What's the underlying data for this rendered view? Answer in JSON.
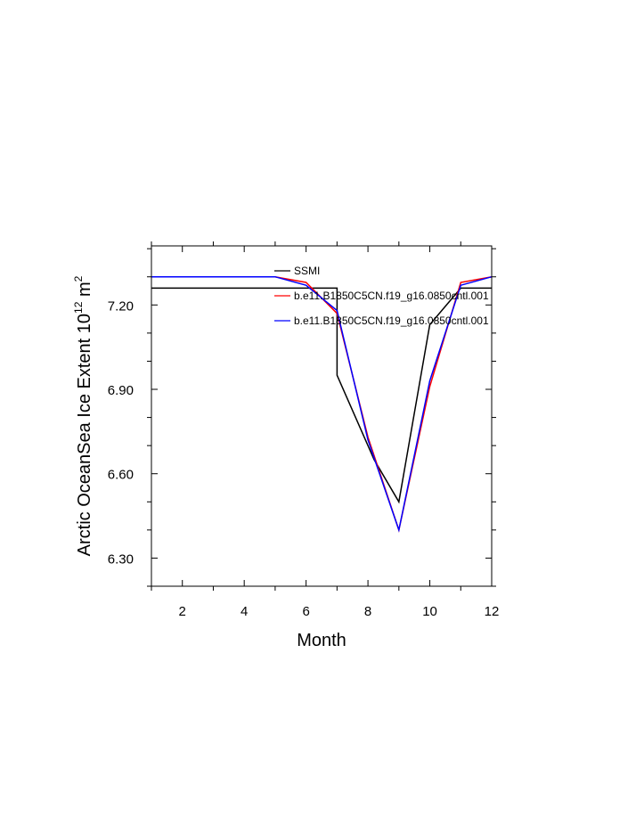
{
  "chart_data": {
    "type": "line",
    "xlabel": "Month",
    "ylabel_main": "Arctic OceanSea Ice Extent 10",
    "ylabel_exp": "12",
    "ylabel_unit": "m",
    "ylabel_unit_exp": "2",
    "xlim": [
      1,
      12
    ],
    "ylim": [
      6.2,
      7.41
    ],
    "x_ticks": [
      2,
      4,
      6,
      8,
      10,
      12
    ],
    "x_tick_labels": [
      "2",
      "4",
      "6",
      "8",
      "10",
      "12"
    ],
    "y_ticks": [
      6.3,
      6.6,
      6.9,
      7.2
    ],
    "y_tick_labels": [
      "6.30",
      "6.60",
      "6.90",
      "7.20"
    ],
    "x": [
      1,
      2,
      3,
      4,
      5,
      6,
      7,
      8,
      9,
      10,
      11,
      12
    ],
    "series": [
      {
        "name": "SSMI",
        "color": "#000000",
        "values": [
          7.26,
          7.26,
          7.26,
          7.26,
          7.26,
          7.26,
          7.26,
          6.95,
          6.65,
          6.5,
          7.13,
          7.26,
          7.26
        ],
        "x": [
          1,
          2,
          3,
          4,
          5,
          6,
          7,
          7,
          8.2,
          9,
          10,
          11,
          12
        ]
      },
      {
        "name": "b.e11.B1850C5CN.f19_g16.0850cntl.001",
        "color": "#ff0000",
        "values": [
          7.3,
          7.3,
          7.3,
          7.3,
          7.3,
          7.28,
          7.17,
          6.73,
          6.4,
          6.91,
          7.28,
          7.3
        ]
      },
      {
        "name": "b.e11.B1850C5CN.f19_g16.0850cntl.001",
        "color": "#0000ff",
        "values": [
          7.3,
          7.3,
          7.3,
          7.3,
          7.3,
          7.27,
          7.18,
          6.72,
          6.4,
          6.93,
          7.27,
          7.3
        ]
      }
    ],
    "legend_position": "top-right",
    "grid": false
  }
}
